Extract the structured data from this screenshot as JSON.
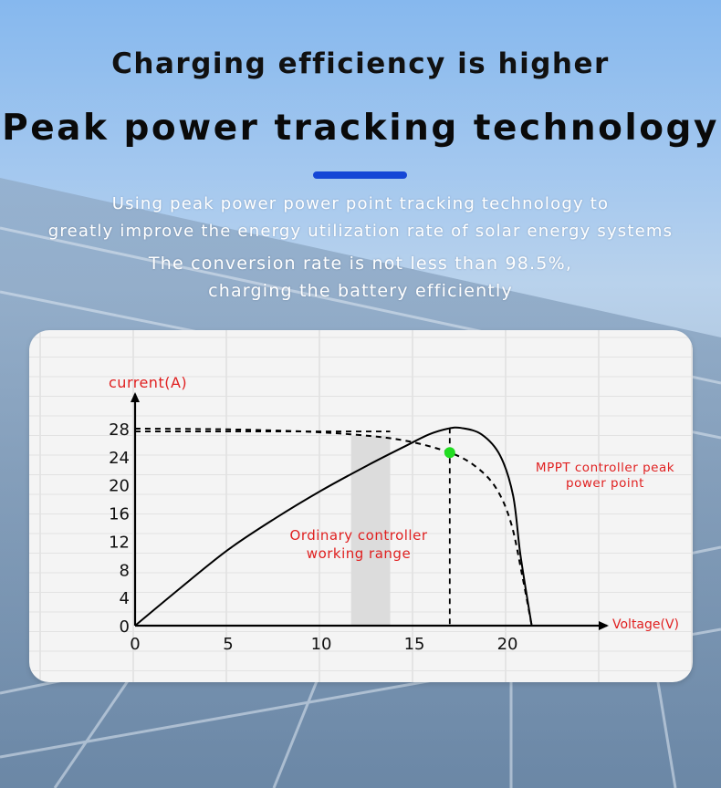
{
  "header": {
    "title": "Charging efficiency is higher",
    "headline": "Peak power tracking technology",
    "accent_color": "#1546d6"
  },
  "description": {
    "line1": "Using peak power power point tracking technology to",
    "line2": "greatly improve the energy utilization rate of solar energy systems",
    "line3": "The conversion rate is not less than 98.5%,",
    "line4": "charging the battery efficiently"
  },
  "chart_data": {
    "type": "line",
    "xlabel": "Voltage(V)",
    "ylabel": "current(A)",
    "x_ticks": [
      0,
      5,
      10,
      15,
      20
    ],
    "y_ticks": [
      0,
      4,
      8,
      12,
      16,
      20,
      24,
      28
    ],
    "xlim": [
      0,
      24.8
    ],
    "ylim": [
      0,
      28
    ],
    "grid": true,
    "series": [
      {
        "style": "solid",
        "color": "#000000",
        "points": [
          [
            0,
            0
          ],
          [
            2.5,
            5.5
          ],
          [
            5,
            10.8
          ],
          [
            7.5,
            15.2
          ],
          [
            10,
            19.2
          ],
          [
            12.5,
            22.8
          ],
          [
            14.5,
            25.5
          ],
          [
            15.8,
            27.2
          ],
          [
            16.8,
            28
          ],
          [
            17.5,
            28.1
          ],
          [
            18.6,
            27.2
          ],
          [
            19.6,
            24.2
          ],
          [
            20.3,
            18.5
          ],
          [
            20.7,
            10
          ],
          [
            21.3,
            0
          ]
        ]
      },
      {
        "style": "dashed",
        "color": "#000000",
        "points": [
          [
            0,
            28
          ],
          [
            5,
            27.9
          ],
          [
            9,
            27.6
          ],
          [
            12,
            27.1
          ],
          [
            14.5,
            26.3
          ],
          [
            16.9,
            24.6
          ],
          [
            18.3,
            22.6
          ],
          [
            19.4,
            19.5
          ],
          [
            20.2,
            14.5
          ],
          [
            20.8,
            7
          ],
          [
            21.3,
            0
          ]
        ]
      }
    ],
    "reference_line": {
      "x": 0,
      "y": 27.6,
      "to_x": 13.7,
      "style": "dashed"
    },
    "mpp_point": {
      "x": 16.9,
      "y": 24.6,
      "color": "#22dd22",
      "vertical_dash_to_axis": true
    },
    "shaded_band": {
      "x_start": 11.6,
      "x_end": 13.7,
      "color": "#dcdcdc"
    },
    "annotations": [
      {
        "text_lines": [
          "Ordinary controller",
          "working range"
        ],
        "color": "#e02020"
      },
      {
        "text_lines": [
          "MPPT controller peak",
          "power point"
        ],
        "color": "#e02020"
      }
    ]
  }
}
